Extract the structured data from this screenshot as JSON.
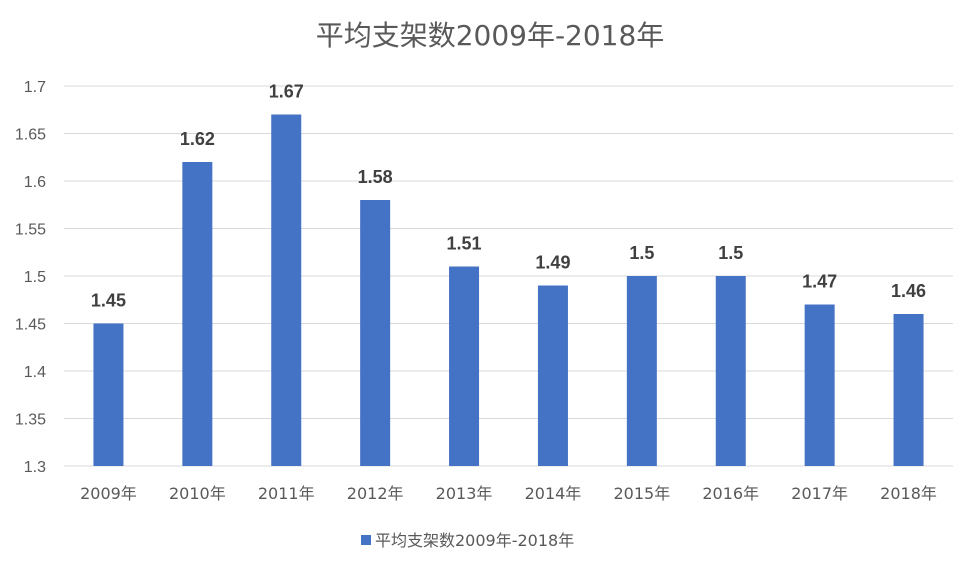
{
  "chart_data": {
    "type": "bar",
    "title": "平均支架数2009年-2018年",
    "categories": [
      "2009年",
      "2010年",
      "2011年",
      "2012年",
      "2013年",
      "2014年",
      "2015年",
      "2016年",
      "2017年",
      "2018年"
    ],
    "series": [
      {
        "name": "平均支架数2009年-2018年",
        "values": [
          1.45,
          1.62,
          1.67,
          1.58,
          1.51,
          1.49,
          1.5,
          1.5,
          1.47,
          1.46
        ],
        "color": "#4472C4"
      }
    ],
    "data_labels": [
      "1.45",
      "1.62",
      "1.67",
      "1.58",
      "1.51",
      "1.49",
      "1.5",
      "1.5",
      "1.47",
      "1.46"
    ],
    "yticks": [
      "1.3",
      "1.35",
      "1.4",
      "1.45",
      "1.5",
      "1.55",
      "1.6",
      "1.65",
      "1.7"
    ],
    "ylim": [
      1.3,
      1.7
    ],
    "xlabel": "",
    "ylabel": "",
    "grid": true,
    "legend_position": "bottom"
  }
}
